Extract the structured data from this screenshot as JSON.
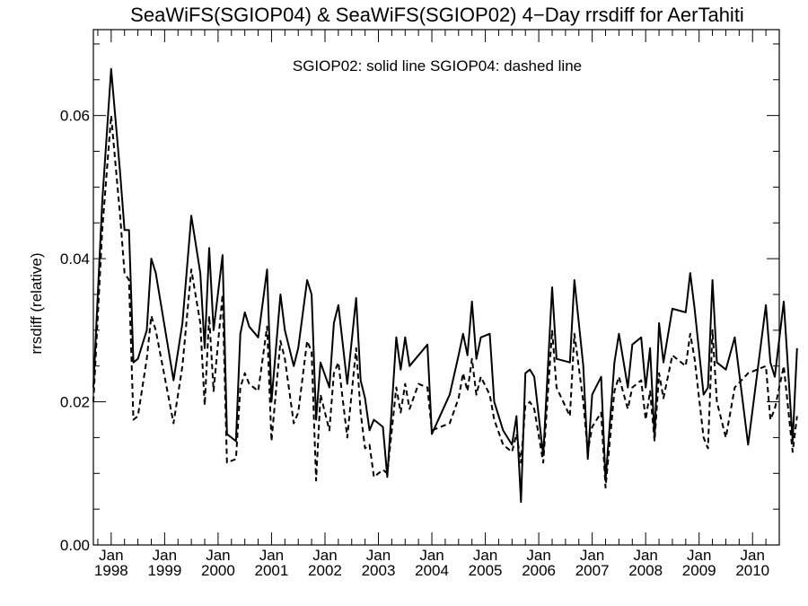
{
  "chart_data": {
    "type": "line",
    "title": "SeaWiFS(SGIOP04) & SeaWiFS(SGIOP02) 4−Day rrsdiff for AerTahiti",
    "annotation": "SGIOP02: solid line   SGIOP04: dashed line",
    "ylabel": "rrsdiff (relative)",
    "xlabel": "",
    "ylim": [
      0.0,
      0.072
    ],
    "xlim": [
      "1997-09",
      "2010-07"
    ],
    "grid": false,
    "yticks": [
      "0.00",
      "0.02",
      "0.04",
      "0.06"
    ],
    "xticks": [
      {
        "month": "Jan",
        "year": "1998"
      },
      {
        "month": "Jan",
        "year": "1999"
      },
      {
        "month": "Jan",
        "year": "2000"
      },
      {
        "month": "Jan",
        "year": "2001"
      },
      {
        "month": "Jan",
        "year": "2002"
      },
      {
        "month": "Jan",
        "year": "2003"
      },
      {
        "month": "Jan",
        "year": "2004"
      },
      {
        "month": "Jan",
        "year": "2005"
      },
      {
        "month": "Jan",
        "year": "2006"
      },
      {
        "month": "Jan",
        "year": "2007"
      },
      {
        "month": "Jan",
        "year": "2008"
      },
      {
        "month": "Jan",
        "year": "2009"
      },
      {
        "month": "Jan",
        "year": "2010"
      }
    ],
    "series": [
      {
        "name": "SGIOP02",
        "style": "solid",
        "points": [
          [
            "1997-09",
            0.022
          ],
          [
            "1997-11",
            0.048
          ],
          [
            "1998-01",
            0.0665
          ],
          [
            "1998-03",
            0.052
          ],
          [
            "1998-04",
            0.044
          ],
          [
            "1998-05",
            0.044
          ],
          [
            "1998-06",
            0.0255
          ],
          [
            "1998-07",
            0.026
          ],
          [
            "1998-09",
            0.03
          ],
          [
            "1998-10",
            0.04
          ],
          [
            "1998-11",
            0.038
          ],
          [
            "1999-03",
            0.023
          ],
          [
            "1999-05",
            0.031
          ],
          [
            "1999-07",
            0.046
          ],
          [
            "1999-09",
            0.038
          ],
          [
            "1999-10",
            0.0275
          ],
          [
            "1999-11",
            0.0415
          ],
          [
            "1999-12",
            0.03
          ],
          [
            "2000-02",
            0.0405
          ],
          [
            "2000-03",
            0.0155
          ],
          [
            "2000-05",
            0.0145
          ],
          [
            "2000-06",
            0.0295
          ],
          [
            "2000-07",
            0.0325
          ],
          [
            "2000-08",
            0.0305
          ],
          [
            "2000-10",
            0.029
          ],
          [
            "2000-12",
            0.0385
          ],
          [
            "2001-01",
            0.02
          ],
          [
            "2001-03",
            0.035
          ],
          [
            "2001-04",
            0.03
          ],
          [
            "2001-06",
            0.025
          ],
          [
            "2001-07",
            0.0275
          ],
          [
            "2001-09",
            0.037
          ],
          [
            "2001-10",
            0.035
          ],
          [
            "2001-11",
            0.0175
          ],
          [
            "2001-12",
            0.0255
          ],
          [
            "2002-02",
            0.022
          ],
          [
            "2002-03",
            0.031
          ],
          [
            "2002-04",
            0.0335
          ],
          [
            "2002-06",
            0.0225
          ],
          [
            "2002-08",
            0.0345
          ],
          [
            "2002-09",
            0.023
          ],
          [
            "2002-10",
            0.0205
          ],
          [
            "2002-11",
            0.016
          ],
          [
            "2002-12",
            0.0175
          ],
          [
            "2003-02",
            0.0165
          ],
          [
            "2003-03",
            0.0095
          ],
          [
            "2003-05",
            0.029
          ],
          [
            "2003-06",
            0.0245
          ],
          [
            "2003-07",
            0.029
          ],
          [
            "2003-08",
            0.025
          ],
          [
            "2003-10",
            0.0265
          ],
          [
            "2003-12",
            0.028
          ],
          [
            "2004-01",
            0.0155
          ],
          [
            "2004-05",
            0.021
          ],
          [
            "2004-07",
            0.0265
          ],
          [
            "2004-08",
            0.0295
          ],
          [
            "2004-09",
            0.0265
          ],
          [
            "2004-10",
            0.034
          ],
          [
            "2004-11",
            0.026
          ],
          [
            "2004-12",
            0.029
          ],
          [
            "2005-02",
            0.0295
          ],
          [
            "2005-03",
            0.02
          ],
          [
            "2005-05",
            0.016
          ],
          [
            "2005-07",
            0.014
          ],
          [
            "2005-08",
            0.018
          ],
          [
            "2005-09",
            0.006
          ],
          [
            "2005-10",
            0.024
          ],
          [
            "2005-11",
            0.0245
          ],
          [
            "2005-12",
            0.0235
          ],
          [
            "2006-02",
            0.0125
          ],
          [
            "2006-04",
            0.036
          ],
          [
            "2006-05",
            0.026
          ],
          [
            "2006-08",
            0.0255
          ],
          [
            "2006-09",
            0.037
          ],
          [
            "2006-11",
            0.025
          ],
          [
            "2006-12",
            0.012
          ],
          [
            "2007-01",
            0.021
          ],
          [
            "2007-03",
            0.0235
          ],
          [
            "2007-04",
            0.009
          ],
          [
            "2007-06",
            0.0255
          ],
          [
            "2007-07",
            0.0295
          ],
          [
            "2007-09",
            0.022
          ],
          [
            "2007-10",
            0.028
          ],
          [
            "2007-12",
            0.029
          ],
          [
            "2008-01",
            0.022
          ],
          [
            "2008-02",
            0.0275
          ],
          [
            "2008-03",
            0.015
          ],
          [
            "2008-04",
            0.031
          ],
          [
            "2008-05",
            0.0255
          ],
          [
            "2008-07",
            0.033
          ],
          [
            "2008-10",
            0.0325
          ],
          [
            "2008-11",
            0.038
          ],
          [
            "2008-12",
            0.033
          ],
          [
            "2009-02",
            0.021
          ],
          [
            "2009-03",
            0.022
          ],
          [
            "2009-04",
            0.037
          ],
          [
            "2009-05",
            0.0255
          ],
          [
            "2009-07",
            0.0245
          ],
          [
            "2009-09",
            0.029
          ],
          [
            "2009-12",
            0.014
          ],
          [
            "2010-04",
            0.0335
          ],
          [
            "2010-05",
            0.0255
          ],
          [
            "2010-06",
            0.0235
          ],
          [
            "2010-08",
            0.034
          ],
          [
            "2010-10",
            0.0145
          ],
          [
            "2010-11",
            0.0275
          ]
        ]
      },
      {
        "name": "SGIOP04",
        "style": "dashed",
        "points": [
          [
            "1997-09",
            0.02
          ],
          [
            "1997-11",
            0.044
          ],
          [
            "1998-01",
            0.06
          ],
          [
            "1998-03",
            0.046
          ],
          [
            "1998-04",
            0.038
          ],
          [
            "1998-05",
            0.037
          ],
          [
            "1998-06",
            0.0175
          ],
          [
            "1998-07",
            0.018
          ],
          [
            "1998-09",
            0.026
          ],
          [
            "1998-10",
            0.032
          ],
          [
            "1998-11",
            0.03
          ],
          [
            "1999-03",
            0.017
          ],
          [
            "1999-05",
            0.025
          ],
          [
            "1999-07",
            0.0385
          ],
          [
            "1999-09",
            0.031
          ],
          [
            "1999-10",
            0.0195
          ],
          [
            "1999-11",
            0.032
          ],
          [
            "1999-12",
            0.0215
          ],
          [
            "2000-02",
            0.035
          ],
          [
            "2000-03",
            0.0115
          ],
          [
            "2000-05",
            0.012
          ],
          [
            "2000-06",
            0.022
          ],
          [
            "2000-07",
            0.024
          ],
          [
            "2000-08",
            0.0225
          ],
          [
            "2000-10",
            0.0215
          ],
          [
            "2000-12",
            0.0305
          ],
          [
            "2001-01",
            0.0145
          ],
          [
            "2001-03",
            0.0285
          ],
          [
            "2001-04",
            0.026
          ],
          [
            "2001-06",
            0.017
          ],
          [
            "2001-07",
            0.0185
          ],
          [
            "2001-09",
            0.0285
          ],
          [
            "2001-10",
            0.027
          ],
          [
            "2001-11",
            0.009
          ],
          [
            "2001-12",
            0.021
          ],
          [
            "2002-02",
            0.016
          ],
          [
            "2002-03",
            0.024
          ],
          [
            "2002-04",
            0.0255
          ],
          [
            "2002-06",
            0.015
          ],
          [
            "2002-08",
            0.0275
          ],
          [
            "2002-09",
            0.0185
          ],
          [
            "2002-10",
            0.0135
          ],
          [
            "2002-11",
            0.014
          ],
          [
            "2002-12",
            0.0095
          ],
          [
            "2003-02",
            0.0105
          ],
          [
            "2003-03",
            0.01
          ],
          [
            "2003-05",
            0.022
          ],
          [
            "2003-06",
            0.0185
          ],
          [
            "2003-07",
            0.0225
          ],
          [
            "2003-08",
            0.019
          ],
          [
            "2003-10",
            0.0225
          ],
          [
            "2003-12",
            0.022
          ],
          [
            "2004-01",
            0.016
          ],
          [
            "2004-05",
            0.017
          ],
          [
            "2004-07",
            0.0205
          ],
          [
            "2004-08",
            0.024
          ],
          [
            "2004-09",
            0.0215
          ],
          [
            "2004-10",
            0.026
          ],
          [
            "2004-11",
            0.021
          ],
          [
            "2004-12",
            0.0235
          ],
          [
            "2005-02",
            0.021
          ],
          [
            "2005-03",
            0.0175
          ],
          [
            "2005-05",
            0.014
          ],
          [
            "2005-07",
            0.013
          ],
          [
            "2005-08",
            0.0155
          ],
          [
            "2005-09",
            0.0115
          ],
          [
            "2005-10",
            0.0195
          ],
          [
            "2005-11",
            0.02
          ],
          [
            "2005-12",
            0.019
          ],
          [
            "2006-02",
            0.0115
          ],
          [
            "2006-04",
            0.03
          ],
          [
            "2006-05",
            0.022
          ],
          [
            "2006-08",
            0.018
          ],
          [
            "2006-09",
            0.0295
          ],
          [
            "2006-11",
            0.02
          ],
          [
            "2006-12",
            0.013
          ],
          [
            "2007-01",
            0.0165
          ],
          [
            "2007-03",
            0.0185
          ],
          [
            "2007-04",
            0.008
          ],
          [
            "2007-06",
            0.0215
          ],
          [
            "2007-07",
            0.0235
          ],
          [
            "2007-09",
            0.019
          ],
          [
            "2007-10",
            0.022
          ],
          [
            "2007-12",
            0.023
          ],
          [
            "2008-01",
            0.0175
          ],
          [
            "2008-02",
            0.0215
          ],
          [
            "2008-03",
            0.0145
          ],
          [
            "2008-04",
            0.024
          ],
          [
            "2008-05",
            0.0205
          ],
          [
            "2008-07",
            0.0265
          ],
          [
            "2008-10",
            0.025
          ],
          [
            "2008-11",
            0.0295
          ],
          [
            "2008-12",
            0.026
          ],
          [
            "2009-02",
            0.015
          ],
          [
            "2009-03",
            0.0135
          ],
          [
            "2009-04",
            0.03
          ],
          [
            "2009-05",
            0.02
          ],
          [
            "2009-07",
            0.015
          ],
          [
            "2009-09",
            0.022
          ],
          [
            "2009-12",
            0.024
          ],
          [
            "2010-04",
            0.025
          ],
          [
            "2010-05",
            0.0175
          ],
          [
            "2010-06",
            0.019
          ],
          [
            "2010-08",
            0.025
          ],
          [
            "2010-10",
            0.013
          ],
          [
            "2010-11",
            0.018
          ]
        ]
      }
    ]
  }
}
